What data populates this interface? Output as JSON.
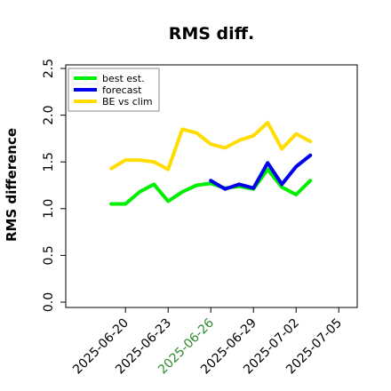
{
  "chart_data": {
    "type": "line",
    "title": "RMS diff.",
    "xlabel": "",
    "ylabel": "RMS difference",
    "ylim": [
      0,
      2.5
    ],
    "y_ticks": [
      "0.0",
      "0.5",
      "1.0",
      "1.5",
      "2.0",
      "2.5"
    ],
    "x_ticks": [
      {
        "label": "2025-06-20",
        "x": 0,
        "color": "#000000"
      },
      {
        "label": "2025-06-23",
        "x": 3,
        "color": "#000000"
      },
      {
        "label": "2025-06-26",
        "x": 6,
        "color": "#2e8b2e"
      },
      {
        "label": "2025-06-29",
        "x": 9,
        "color": "#000000"
      },
      {
        "label": "2025-07-02",
        "x": 12,
        "color": "#000000"
      },
      {
        "label": "2025-07-05",
        "x": 15,
        "color": "#000000"
      }
    ],
    "xlim": [
      -4.2,
      16.3
    ],
    "grid": false,
    "legend_position": "top-left",
    "series": [
      {
        "name": "best est.",
        "color": "#00ee00",
        "x": [
          -1,
          0,
          1,
          2,
          3,
          4,
          5,
          6,
          7,
          8,
          9,
          10,
          11,
          12,
          13
        ],
        "values": [
          1.05,
          1.05,
          1.18,
          1.26,
          1.08,
          1.18,
          1.25,
          1.27,
          1.22,
          1.24,
          1.21,
          1.42,
          1.23,
          1.15,
          1.3
        ]
      },
      {
        "name": "forecast",
        "color": "#0000ee",
        "x": [
          6,
          7,
          8,
          9,
          10,
          11,
          12,
          13
        ],
        "values": [
          1.3,
          1.21,
          1.26,
          1.22,
          1.49,
          1.26,
          1.45,
          1.57
        ]
      },
      {
        "name": "BE vs clim",
        "color": "#ffdd00",
        "x": [
          -1,
          0,
          1,
          2,
          3,
          4,
          5,
          6,
          7,
          8,
          9,
          10,
          11,
          12,
          13
        ],
        "values": [
          1.43,
          1.52,
          1.52,
          1.5,
          1.42,
          1.85,
          1.81,
          1.69,
          1.65,
          1.73,
          1.78,
          1.92,
          1.64,
          1.8,
          1.72
        ]
      }
    ]
  }
}
